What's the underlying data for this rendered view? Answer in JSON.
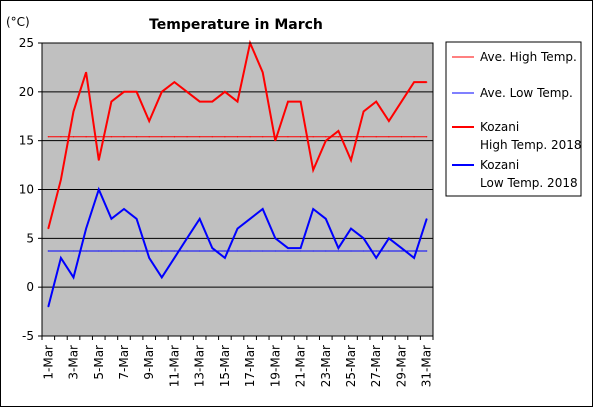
{
  "chart_data": {
    "type": "line",
    "title": "Temperature in March",
    "unit_label": "(°C)",
    "xlabel": "",
    "ylabel": "",
    "ylim": [
      -5,
      25
    ],
    "y_ticks": [
      "25",
      "20",
      "15",
      "10",
      "5",
      "0",
      "-5"
    ],
    "y_tick_values": [
      25,
      20,
      15,
      10,
      5,
      0,
      -5
    ],
    "x": [
      1,
      2,
      3,
      4,
      5,
      6,
      7,
      8,
      9,
      10,
      11,
      12,
      13,
      14,
      15,
      16,
      17,
      18,
      19,
      20,
      21,
      22,
      23,
      24,
      25,
      26,
      27,
      28,
      29,
      30,
      31
    ],
    "x_tick_labels": [
      "1-Mar",
      "3-Mar",
      "5-Mar",
      "7-Mar",
      "9-Mar",
      "11-Mar",
      "13-Mar",
      "15-Mar",
      "17-Mar",
      "19-Mar",
      "21-Mar",
      "23-Mar",
      "25-Mar",
      "27-Mar",
      "29-Mar",
      "31-Mar"
    ],
    "x_tick_values": [
      1,
      3,
      5,
      7,
      9,
      11,
      13,
      15,
      17,
      19,
      21,
      23,
      25,
      27,
      29,
      31
    ],
    "grid": "horizontal",
    "plot_background": "#c0c0c0",
    "legend_position": "right",
    "series": [
      {
        "name": "Ave. High Temp.",
        "color": "#ff0000",
        "style": "thin",
        "values": [
          15.4,
          15.4,
          15.4,
          15.4,
          15.4,
          15.4,
          15.4,
          15.4,
          15.4,
          15.4,
          15.4,
          15.4,
          15.4,
          15.4,
          15.4,
          15.4,
          15.4,
          15.4,
          15.4,
          15.4,
          15.4,
          15.4,
          15.4,
          15.4,
          15.4,
          15.4,
          15.4,
          15.4,
          15.4,
          15.4,
          15.4
        ]
      },
      {
        "name": "Ave. Low Temp.",
        "color": "#0000ff",
        "style": "thin",
        "values": [
          3.7,
          3.7,
          3.7,
          3.7,
          3.7,
          3.7,
          3.7,
          3.7,
          3.7,
          3.7,
          3.7,
          3.7,
          3.7,
          3.7,
          3.7,
          3.7,
          3.7,
          3.7,
          3.7,
          3.7,
          3.7,
          3.7,
          3.7,
          3.7,
          3.7,
          3.7,
          3.7,
          3.7,
          3.7,
          3.7,
          3.7
        ]
      },
      {
        "name": "Kozani High Temp. 2018",
        "legend_lines": [
          "Kozani",
          "High Temp. 2018"
        ],
        "color": "#ff0000",
        "style": "thick",
        "values": [
          6,
          11,
          18,
          22,
          13,
          19,
          20,
          20,
          17,
          20,
          21,
          20,
          19,
          19,
          20,
          19,
          25,
          22,
          15,
          19,
          19,
          12,
          15,
          16,
          13,
          18,
          19,
          17,
          19,
          21,
          21
        ]
      },
      {
        "name": "Kozani Low Temp. 2018",
        "legend_lines": [
          "Kozani",
          "Low Temp. 2018"
        ],
        "color": "#0000ff",
        "style": "thick",
        "values": [
          -2,
          3,
          1,
          6,
          10,
          7,
          8,
          7,
          3,
          1,
          3,
          5,
          7,
          4,
          3,
          6,
          7,
          8,
          5,
          4,
          4,
          8,
          7,
          4,
          6,
          5,
          3,
          5,
          4,
          3,
          7
        ]
      }
    ]
  }
}
